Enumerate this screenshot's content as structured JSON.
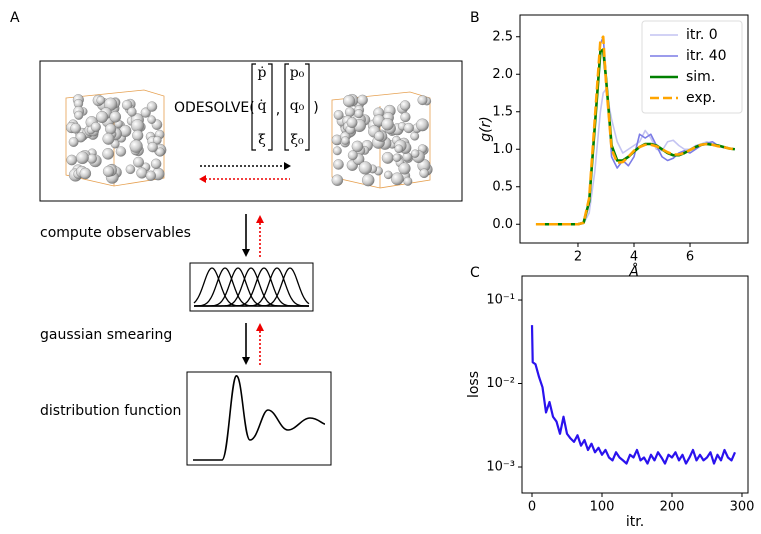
{
  "panels": {
    "a": "A",
    "b": "B",
    "c": "C"
  },
  "diagram": {
    "solver": "ODESOLVE(",
    "comma": ",",
    "close": ")",
    "state": [
      "ṗ",
      "q̇",
      "ξ̇"
    ],
    "initial": [
      "p₀",
      "q₀",
      "ξ₀"
    ],
    "steps": [
      "compute observables",
      "gaussian smearing",
      "distribution function"
    ]
  },
  "chart_data": [
    {
      "type": "line",
      "xlabel": "Å",
      "ylabel": "g(r)",
      "x": [
        0.5,
        1.0,
        1.5,
        2.0,
        2.2,
        2.4,
        2.6,
        2.8,
        2.9,
        3.0,
        3.2,
        3.4,
        3.6,
        3.8,
        4.0,
        4.2,
        4.4,
        4.6,
        4.8,
        5.0,
        5.2,
        5.4,
        5.6,
        5.8,
        6.0,
        6.2,
        6.4,
        6.6,
        6.8,
        7.0,
        7.2,
        7.4,
        7.6
      ],
      "series": [
        {
          "name": "itr. 0",
          "color": "#c4c4f2",
          "values": [
            0,
            0,
            0,
            0,
            0.01,
            0.15,
            0.7,
            1.5,
            1.75,
            1.8,
            1.4,
            1.1,
            0.95,
            1.0,
            1.05,
            1.1,
            1.25,
            1.15,
            1.0,
            0.98,
            1.1,
            1.12,
            1.05,
            1.0,
            1.0,
            1.05,
            1.07,
            1.1,
            1.07,
            1.05,
            1.03,
            1.01,
            1.0
          ]
        },
        {
          "name": "itr. 40",
          "color": "#7b7be6",
          "values": [
            0,
            0,
            0,
            0,
            0.02,
            0.3,
            1.3,
            2.4,
            2.5,
            2.0,
            0.9,
            0.75,
            0.85,
            0.78,
            0.9,
            1.2,
            1.15,
            1.2,
            1.05,
            0.9,
            0.85,
            0.88,
            0.95,
            0.98,
            0.95,
            1.0,
            1.05,
            1.08,
            1.1,
            1.05,
            1.02,
            1.01,
            1.0
          ]
        },
        {
          "name": "sim.",
          "color": "#008000",
          "values": [
            0,
            0,
            0,
            0,
            0.02,
            0.3,
            1.3,
            2.3,
            2.33,
            1.95,
            1.05,
            0.85,
            0.85,
            0.9,
            0.97,
            1.03,
            1.07,
            1.07,
            1.05,
            1.0,
            0.95,
            0.92,
            0.92,
            0.95,
            0.99,
            1.03,
            1.06,
            1.07,
            1.06,
            1.05,
            1.03,
            1.01,
            1.0
          ]
        },
        {
          "name": "exp.",
          "color": "#ffa500",
          "dashed": true,
          "values": [
            0,
            0,
            0,
            0,
            0.02,
            0.35,
            1.4,
            2.45,
            2.5,
            1.9,
            1.0,
            0.82,
            0.83,
            0.9,
            0.98,
            1.03,
            1.06,
            1.06,
            1.04,
            1.0,
            0.96,
            0.93,
            0.93,
            0.95,
            0.99,
            1.03,
            1.06,
            1.07,
            1.06,
            1.04,
            1.03,
            1.01,
            1.0
          ]
        }
      ],
      "xlim": [
        -0.07,
        8.07
      ],
      "ylim": [
        -0.25,
        2.79
      ],
      "xticks": [
        2,
        4,
        6
      ],
      "yticks": [
        {
          "value": 0,
          "label": "0.0"
        },
        0.5,
        {
          "value": 1,
          "label": "1.0"
        },
        1.5,
        {
          "value": 2,
          "label": "2.0"
        },
        2.5
      ],
      "legend": "upper-right"
    },
    {
      "type": "line",
      "xlabel": "itr.",
      "ylabel": "loss",
      "log_y": true,
      "x": [
        0,
        1,
        5,
        10,
        15,
        20,
        25,
        30,
        35,
        40,
        45,
        50,
        55,
        60,
        65,
        70,
        75,
        80,
        85,
        90,
        95,
        100,
        105,
        110,
        115,
        120,
        125,
        130,
        135,
        140,
        145,
        150,
        155,
        160,
        165,
        170,
        175,
        180,
        185,
        190,
        195,
        200,
        205,
        210,
        215,
        220,
        225,
        230,
        235,
        240,
        245,
        250,
        255,
        260,
        265,
        270,
        275,
        280,
        285,
        290
      ],
      "series": [
        {
          "color": "#2a12ee",
          "values": [
            0.05,
            0.018,
            0.017,
            0.012,
            0.009,
            0.0045,
            0.006,
            0.004,
            0.0035,
            0.0025,
            0.004,
            0.0025,
            0.0022,
            0.002,
            0.0024,
            0.0018,
            0.0021,
            0.0016,
            0.0019,
            0.0015,
            0.0017,
            0.0014,
            0.0016,
            0.0013,
            0.0012,
            0.0015,
            0.0013,
            0.0012,
            0.0011,
            0.0014,
            0.0013,
            0.0016,
            0.0012,
            0.0013,
            0.0011,
            0.0014,
            0.0012,
            0.0015,
            0.0013,
            0.0011,
            0.0014,
            0.0013,
            0.0015,
            0.0012,
            0.0014,
            0.0011,
            0.0013,
            0.0016,
            0.0012,
            0.0014,
            0.0012,
            0.0013,
            0.0015,
            0.0011,
            0.0014,
            0.0012,
            0.0016,
            0.0013,
            0.0012,
            0.0015
          ]
        }
      ],
      "xlim": [
        -14.3,
        308.6
      ],
      "ylim": [
        0.000488,
        0.194
      ],
      "xticks": [
        0,
        100,
        200,
        300
      ],
      "yticks": [
        {
          "value": 0.001,
          "label": "10⁻³"
        },
        {
          "value": 0.01,
          "label": "10⁻²"
        },
        {
          "value": 0.1,
          "label": "10⁻¹"
        }
      ]
    }
  ]
}
